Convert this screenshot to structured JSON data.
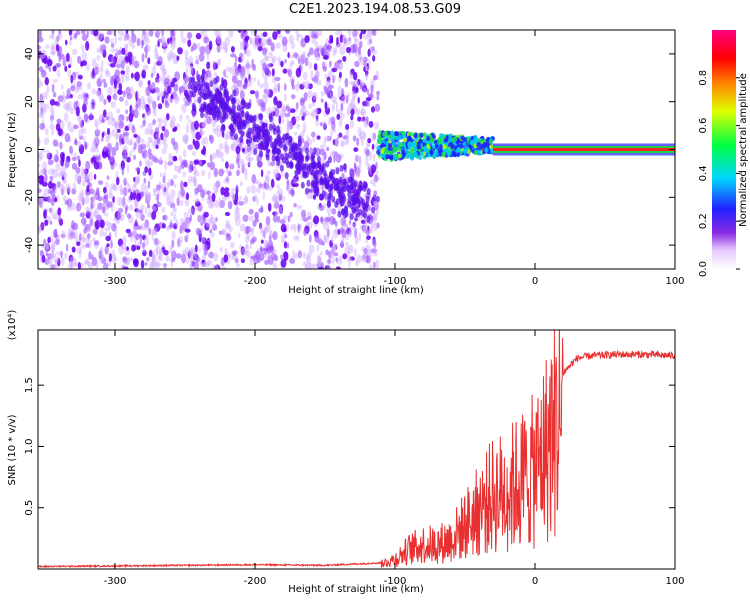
{
  "figure": {
    "title": "C2E1.2023.194.08.53.G09"
  },
  "chart_data": [
    {
      "type": "heatmap",
      "xlabel": "Height of straight line (km)",
      "ylabel": "Frequency (Hz)",
      "xlim": [
        -355,
        100
      ],
      "ylim": [
        -50,
        50
      ],
      "x_ticks": [
        -300,
        -200,
        -100,
        0,
        100
      ],
      "y_ticks": [
        -40,
        -20,
        0,
        20,
        40
      ],
      "colorbar": {
        "label": "Normalized spectral amplitude",
        "range": [
          0,
          1
        ],
        "ticks": [
          0.0,
          0.2,
          0.4,
          0.6,
          0.8
        ]
      },
      "regions": [
        {
          "x": [
            -355,
            -112
          ],
          "y": [
            -50,
            50
          ],
          "description_amplitude": 0.1
        },
        {
          "x": [
            -112,
            -30
          ],
          "y": [
            -12,
            8
          ],
          "description_amplitude": 0.35
        },
        {
          "x": [
            -30,
            100
          ],
          "y": [
            -1,
            1
          ],
          "description_amplitude": 0.9
        }
      ]
    },
    {
      "type": "line",
      "xlabel": "Height of straight line (km)",
      "ylabel": "SNR (10 * v/v)",
      "y_multiplier": "(x10⁴)",
      "xlim": [
        -355,
        100
      ],
      "ylim": [
        0,
        1.95
      ],
      "x_ticks": [
        -300,
        -200,
        -100,
        0,
        100
      ],
      "y_ticks": [
        0.5,
        1.0,
        1.5
      ],
      "y_tick_labels": [
        "0.5",
        "1.0",
        "1.5"
      ],
      "series": [
        {
          "color": "#e83030",
          "x": [
            -355,
            -300,
            -250,
            -200,
            -150,
            -110,
            -100,
            -90,
            -80,
            -70,
            -60,
            -50,
            -40,
            -30,
            -20,
            -10,
            0,
            10,
            20,
            30,
            40,
            60,
            80,
            100
          ],
          "y": [
            0.02,
            0.025,
            0.03,
            0.035,
            0.03,
            0.05,
            0.1,
            0.2,
            0.25,
            0.25,
            0.3,
            0.45,
            0.6,
            0.75,
            0.8,
            0.9,
            1.0,
            1.3,
            1.6,
            1.72,
            1.74,
            1.75,
            1.75,
            1.74
          ]
        }
      ]
    }
  ]
}
